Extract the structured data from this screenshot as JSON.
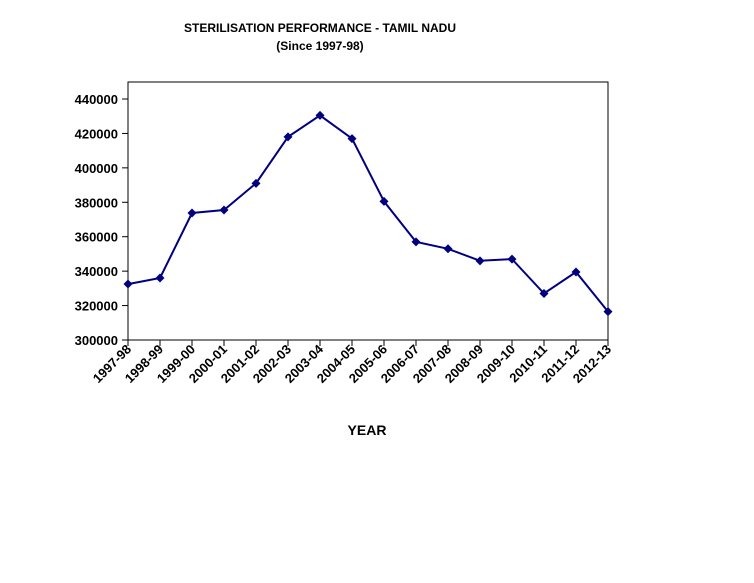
{
  "chart_data": {
    "type": "line",
    "title": "STERILISATION PERFORMANCE - TAMIL NADU",
    "subtitle": "(Since 1997-98)",
    "xlabel": "YEAR",
    "ylabel": "",
    "categories": [
      "1997-98",
      "1998-99",
      "1999-00",
      "2000-01",
      "2001-02",
      "2002-03",
      "2003-04",
      "2004-05",
      "2005-06",
      "2006-07",
      "2007-08",
      "2008-09",
      "2009-10",
      "2010-11",
      "2011-12",
      "2012-13"
    ],
    "series": [
      {
        "values": [
          332500,
          336000,
          373800,
          375500,
          391000,
          418000,
          430500,
          417000,
          380500,
          357000,
          353000,
          346000,
          347000,
          327000,
          339500,
          316500
        ],
        "color": "#000080"
      }
    ],
    "ylim": [
      300000,
      440000
    ],
    "yticks": [
      300000,
      320000,
      340000,
      360000,
      380000,
      400000,
      420000,
      440000
    ],
    "grid": false,
    "legend": "none"
  }
}
